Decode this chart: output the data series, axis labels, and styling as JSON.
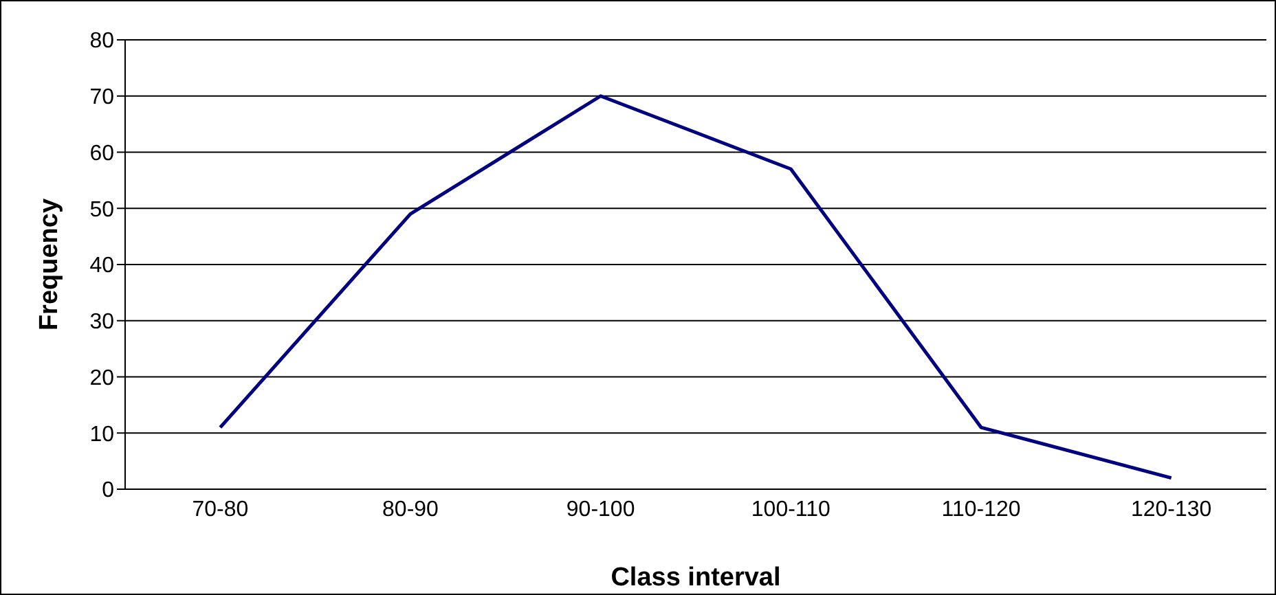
{
  "chart_data": {
    "type": "line",
    "xlabel": "Class interval",
    "ylabel": "Frequency",
    "categories": [
      "70-80",
      "80-90",
      "90-100",
      "100-110",
      "110-120",
      "120-130"
    ],
    "series": [
      {
        "color": "#000080",
        "values": [
          11,
          49,
          70,
          57,
          11,
          2
        ]
      }
    ],
    "ylim": [
      0,
      80
    ],
    "yticks": [
      0,
      10,
      20,
      30,
      40,
      50,
      60,
      70,
      80
    ],
    "grid": "y",
    "legend": false,
    "marker": "none",
    "line_style": "solid"
  }
}
